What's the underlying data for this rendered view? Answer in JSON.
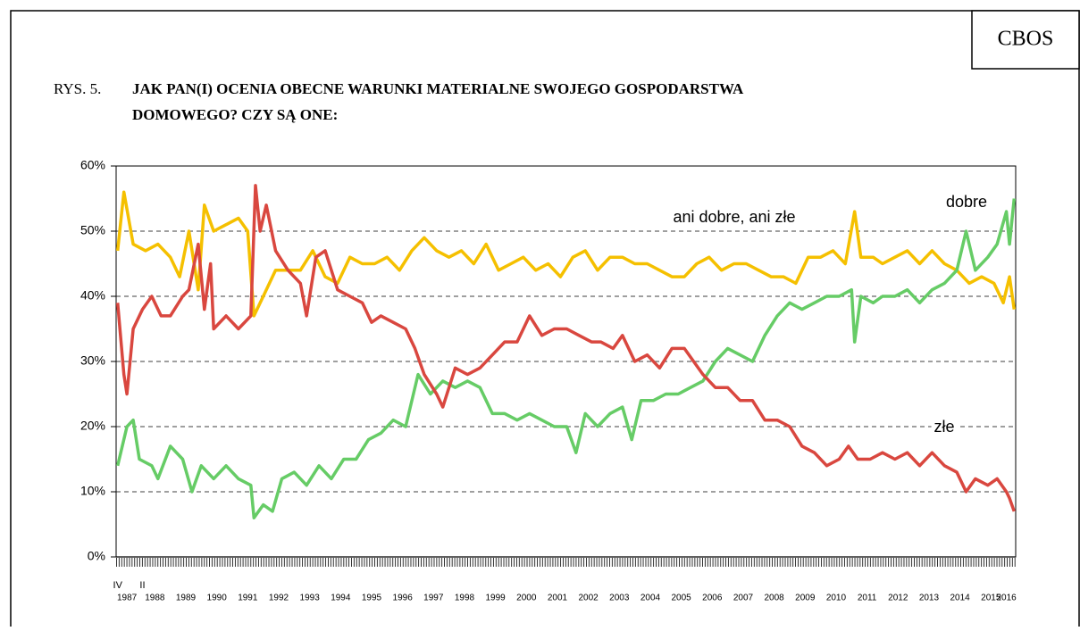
{
  "chart_data": {
    "type": "line",
    "badge": "CBOS",
    "title_prefix": "RYS. 5.",
    "title": [
      "JAK PAN(I) OCENIA OBECNE WARUNKI MATERIALNE SWOJEGO GOSPODARSTWA",
      "DOMOWEGO? CZY SĄ ONE:"
    ],
    "xlim": [
      1987.25,
      2016.3
    ],
    "ylim": [
      0,
      60
    ],
    "yticks": [
      {
        "value": 0,
        "label": "0%"
      },
      {
        "value": 10,
        "label": "10%"
      },
      {
        "value": 20,
        "label": "20%"
      },
      {
        "value": 30,
        "label": "30%"
      },
      {
        "value": 40,
        "label": "40%"
      },
      {
        "value": 50,
        "label": "50%"
      },
      {
        "value": 60,
        "label": "60%"
      }
    ],
    "xticks": [
      {
        "value": 1987.6,
        "label": "1987"
      },
      {
        "value": 1988.5,
        "label": "1988"
      },
      {
        "value": 1989.5,
        "label": "1989"
      },
      {
        "value": 1990.5,
        "label": "1990"
      },
      {
        "value": 1991.5,
        "label": "1991"
      },
      {
        "value": 1992.5,
        "label": "1992"
      },
      {
        "value": 1993.5,
        "label": "1993"
      },
      {
        "value": 1994.5,
        "label": "1994"
      },
      {
        "value": 1995.5,
        "label": "1995"
      },
      {
        "value": 1996.5,
        "label": "1996"
      },
      {
        "value": 1997.5,
        "label": "1997"
      },
      {
        "value": 1998.5,
        "label": "1998"
      },
      {
        "value": 1999.5,
        "label": "1999"
      },
      {
        "value": 2000.5,
        "label": "2000"
      },
      {
        "value": 2001.5,
        "label": "2001"
      },
      {
        "value": 2002.5,
        "label": "2002"
      },
      {
        "value": 2003.5,
        "label": "2003"
      },
      {
        "value": 2004.5,
        "label": "2004"
      },
      {
        "value": 2005.5,
        "label": "2005"
      },
      {
        "value": 2006.5,
        "label": "2006"
      },
      {
        "value": 2007.5,
        "label": "2007"
      },
      {
        "value": 2008.5,
        "label": "2008"
      },
      {
        "value": 2009.5,
        "label": "2009"
      },
      {
        "value": 2010.5,
        "label": "2010"
      },
      {
        "value": 2011.5,
        "label": "2011"
      },
      {
        "value": 2012.5,
        "label": "2012"
      },
      {
        "value": 2013.5,
        "label": "2013"
      },
      {
        "value": 2014.5,
        "label": "2014"
      },
      {
        "value": 2015.5,
        "label": "2015"
      },
      {
        "value": 2016.0,
        "label": "2016"
      }
    ],
    "xticks_minor_labels": [
      {
        "value": 1987.3,
        "label": "IV"
      },
      {
        "value": 1988.1,
        "label": "II"
      }
    ],
    "grid": true,
    "series": [
      {
        "name": "ani dobre, ani złe",
        "color": "#f5c000",
        "x": [
          1987.3,
          1987.5,
          1987.8,
          1988.2,
          1988.6,
          1989.0,
          1989.3,
          1989.6,
          1989.9,
          1990.1,
          1990.4,
          1990.8,
          1991.2,
          1991.5,
          1991.7,
          1992.0,
          1992.4,
          1992.8,
          1993.2,
          1993.6,
          1994.0,
          1994.4,
          1994.8,
          1995.2,
          1995.6,
          1996.0,
          1996.4,
          1996.8,
          1997.2,
          1997.6,
          1998.0,
          1998.4,
          1998.8,
          1999.2,
          1999.6,
          2000.0,
          2000.4,
          2000.8,
          2001.2,
          2001.6,
          2002.0,
          2002.4,
          2002.8,
          2003.2,
          2003.6,
          2004.0,
          2004.4,
          2004.8,
          2005.2,
          2005.6,
          2006.0,
          2006.4,
          2006.8,
          2007.2,
          2007.6,
          2008.0,
          2008.4,
          2008.8,
          2009.2,
          2009.6,
          2010.0,
          2010.4,
          2010.8,
          2011.1,
          2011.3,
          2011.7,
          2012.0,
          2012.4,
          2012.8,
          2013.2,
          2013.6,
          2014.0,
          2014.4,
          2014.8,
          2015.2,
          2015.6,
          2015.9,
          2016.1,
          2016.25
        ],
        "values": [
          47,
          56,
          48,
          47,
          48,
          46,
          43,
          50,
          41,
          54,
          50,
          51,
          52,
          50,
          37,
          40,
          44,
          44,
          44,
          47,
          43,
          42,
          46,
          45,
          45,
          46,
          44,
          47,
          49,
          47,
          46,
          47,
          45,
          48,
          44,
          45,
          46,
          44,
          45,
          43,
          46,
          47,
          44,
          46,
          46,
          45,
          45,
          44,
          43,
          43,
          45,
          46,
          44,
          45,
          45,
          44,
          43,
          43,
          42,
          46,
          46,
          47,
          45,
          53,
          46,
          46,
          45,
          46,
          47,
          45,
          47,
          45,
          44,
          42,
          43,
          42,
          39,
          43,
          38
        ]
      },
      {
        "name": "dobre",
        "color": "#66cc66",
        "x": [
          1987.3,
          1987.6,
          1987.8,
          1988.0,
          1988.4,
          1988.6,
          1989.0,
          1989.4,
          1989.7,
          1990.0,
          1990.4,
          1990.8,
          1991.2,
          1991.6,
          1991.7,
          1992.0,
          1992.3,
          1992.6,
          1993.0,
          1993.4,
          1993.8,
          1994.2,
          1994.6,
          1995.0,
          1995.4,
          1995.8,
          1996.2,
          1996.6,
          1997.0,
          1997.4,
          1997.8,
          1998.2,
          1998.6,
          1999.0,
          1999.4,
          1999.8,
          2000.2,
          2000.6,
          2001.0,
          2001.4,
          2001.8,
          2002.1,
          2002.4,
          2002.8,
          2003.2,
          2003.6,
          2003.9,
          2004.2,
          2004.6,
          2005.0,
          2005.4,
          2005.8,
          2006.2,
          2006.6,
          2007.0,
          2007.4,
          2007.8,
          2008.2,
          2008.6,
          2009.0,
          2009.4,
          2009.8,
          2010.2,
          2010.6,
          2011.0,
          2011.1,
          2011.3,
          2011.7,
          2012.0,
          2012.4,
          2012.8,
          2013.2,
          2013.6,
          2014.0,
          2014.4,
          2014.7,
          2015.0,
          2015.4,
          2015.7,
          2016.0,
          2016.1,
          2016.25
        ],
        "values": [
          14,
          20,
          21,
          15,
          14,
          12,
          17,
          15,
          10,
          14,
          12,
          14,
          12,
          11,
          6,
          8,
          7,
          12,
          13,
          11,
          14,
          12,
          15,
          15,
          18,
          19,
          21,
          20,
          28,
          25,
          27,
          26,
          27,
          26,
          22,
          22,
          21,
          22,
          21,
          20,
          20,
          16,
          22,
          20,
          22,
          23,
          18,
          24,
          24,
          25,
          25,
          26,
          27,
          30,
          32,
          31,
          30,
          34,
          37,
          39,
          38,
          39,
          40,
          40,
          41,
          33,
          40,
          39,
          40,
          40,
          41,
          39,
          41,
          42,
          44,
          50,
          44,
          46,
          48,
          53,
          48,
          55
        ]
      },
      {
        "name": "złe",
        "color": "#d9473f",
        "x": [
          1987.3,
          1987.5,
          1987.6,
          1987.8,
          1988.1,
          1988.4,
          1988.7,
          1989.0,
          1989.4,
          1989.6,
          1989.9,
          1990.1,
          1990.3,
          1990.4,
          1990.8,
          1991.2,
          1991.6,
          1991.75,
          1991.9,
          1992.1,
          1992.4,
          1992.8,
          1993.2,
          1993.4,
          1993.7,
          1994.0,
          1994.4,
          1994.8,
          1995.2,
          1995.5,
          1995.8,
          1996.2,
          1996.6,
          1996.9,
          1997.2,
          1997.6,
          1997.8,
          1998.2,
          1998.6,
          1999.0,
          1999.4,
          1999.8,
          2000.2,
          2000.6,
          2001.0,
          2001.4,
          2001.8,
          2002.2,
          2002.6,
          2002.9,
          2003.3,
          2003.6,
          2004.0,
          2004.4,
          2004.8,
          2005.2,
          2005.6,
          2005.9,
          2006.2,
          2006.6,
          2007.0,
          2007.4,
          2007.8,
          2008.2,
          2008.6,
          2009.0,
          2009.4,
          2009.8,
          2010.2,
          2010.6,
          2010.9,
          2011.2,
          2011.6,
          2012.0,
          2012.4,
          2012.8,
          2013.2,
          2013.6,
          2014.0,
          2014.4,
          2014.7,
          2015.0,
          2015.4,
          2015.7,
          2016.0,
          2016.1,
          2016.25
        ],
        "values": [
          39,
          28,
          25,
          35,
          38,
          40,
          37,
          37,
          40,
          41,
          48,
          38,
          45,
          35,
          37,
          35,
          37,
          57,
          50,
          54,
          47,
          44,
          42,
          37,
          46,
          47,
          41,
          40,
          39,
          36,
          37,
          36,
          35,
          32,
          28,
          25,
          23,
          29,
          28,
          29,
          31,
          33,
          33,
          37,
          34,
          35,
          35,
          34,
          33,
          33,
          32,
          34,
          30,
          31,
          29,
          32,
          32,
          30,
          28,
          26,
          26,
          24,
          24,
          21,
          21,
          20,
          17,
          16,
          14,
          15,
          17,
          15,
          15,
          16,
          15,
          16,
          14,
          16,
          14,
          13,
          10,
          12,
          11,
          12,
          10,
          9,
          7
        ]
      }
    ]
  }
}
